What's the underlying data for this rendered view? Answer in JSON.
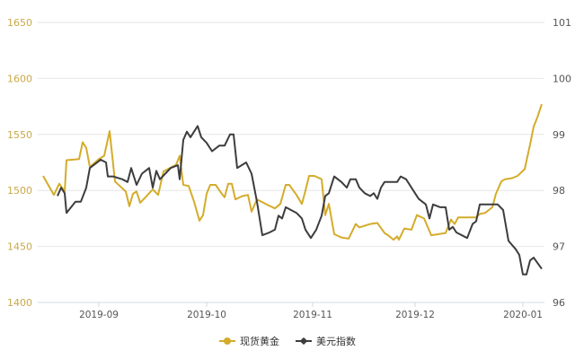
{
  "chart_data": {
    "type": "line",
    "title": "",
    "xlabel": "",
    "ylabel_left": "",
    "ylabel_right": "",
    "x_ticks": [
      "2019-09",
      "2019-10",
      "2019-11",
      "2019-12",
      "2020-01"
    ],
    "y_left_ticks": [
      1650,
      1600,
      1550,
      1500,
      1450,
      1400
    ],
    "y_left_range": [
      1400,
      1650
    ],
    "y_right_ticks": [
      101,
      100,
      99,
      98,
      97,
      96
    ],
    "y_right_range": [
      96,
      101
    ],
    "grid": true,
    "legend_position": "bottom",
    "series": [
      {
        "name": "现货黄金",
        "axis": "left",
        "color": "#d4ac2b",
        "points": [
          [
            48,
            1513
          ],
          [
            60,
            1496
          ],
          [
            66,
            1506
          ],
          [
            72,
            1499
          ],
          [
            74,
            1527
          ],
          [
            88,
            1528
          ],
          [
            92,
            1543
          ],
          [
            96,
            1538
          ],
          [
            100,
            1521
          ],
          [
            110,
            1528
          ],
          [
            116,
            1531
          ],
          [
            122,
            1553
          ],
          [
            128,
            1508
          ],
          [
            136,
            1502
          ],
          [
            140,
            1499
          ],
          [
            144,
            1486
          ],
          [
            148,
            1497
          ],
          [
            152,
            1499
          ],
          [
            156,
            1489
          ],
          [
            162,
            1494
          ],
          [
            170,
            1501
          ],
          [
            176,
            1496
          ],
          [
            182,
            1517
          ],
          [
            196,
            1523
          ],
          [
            200,
            1531
          ],
          [
            204,
            1505
          ],
          [
            210,
            1504
          ],
          [
            216,
            1490
          ],
          [
            222,
            1473
          ],
          [
            226,
            1478
          ],
          [
            230,
            1497
          ],
          [
            234,
            1505
          ],
          [
            240,
            1505
          ],
          [
            246,
            1498
          ],
          [
            250,
            1494
          ],
          [
            254,
            1506
          ],
          [
            258,
            1506
          ],
          [
            262,
            1492
          ],
          [
            270,
            1495
          ],
          [
            276,
            1496
          ],
          [
            280,
            1481
          ],
          [
            286,
            1492
          ],
          [
            298,
            1487
          ],
          [
            306,
            1484
          ],
          [
            312,
            1488
          ],
          [
            318,
            1505
          ],
          [
            322,
            1505
          ],
          [
            330,
            1496
          ],
          [
            336,
            1488
          ],
          [
            340,
            1500
          ],
          [
            344,
            1513
          ],
          [
            350,
            1513
          ],
          [
            358,
            1510
          ],
          [
            362,
            1478
          ],
          [
            366,
            1488
          ],
          [
            372,
            1461
          ],
          [
            380,
            1458
          ],
          [
            388,
            1457
          ],
          [
            396,
            1470
          ],
          [
            400,
            1467
          ],
          [
            412,
            1470
          ],
          [
            420,
            1471
          ],
          [
            428,
            1462
          ],
          [
            432,
            1460
          ],
          [
            438,
            1456
          ],
          [
            442,
            1459
          ],
          [
            444,
            1456
          ],
          [
            450,
            1466
          ],
          [
            458,
            1465
          ],
          [
            464,
            1478
          ],
          [
            472,
            1475
          ],
          [
            480,
            1460
          ],
          [
            488,
            1461
          ],
          [
            496,
            1462
          ],
          [
            502,
            1474
          ],
          [
            506,
            1470
          ],
          [
            510,
            1476
          ],
          [
            520,
            1476
          ],
          [
            530,
            1476
          ],
          [
            534,
            1479
          ],
          [
            540,
            1480
          ],
          [
            548,
            1485
          ],
          [
            552,
            1497
          ],
          [
            558,
            1508
          ],
          [
            562,
            1510
          ],
          [
            570,
            1511
          ],
          [
            576,
            1513
          ],
          [
            584,
            1519
          ],
          [
            590,
            1541
          ],
          [
            594,
            1557
          ],
          [
            598,
            1565
          ],
          [
            603,
            1577
          ]
        ]
      },
      {
        "name": "美元指数",
        "axis": "right",
        "color": "#3d3d3f",
        "points": [
          [
            64,
            97.9
          ],
          [
            68,
            98.05
          ],
          [
            72,
            97.95
          ],
          [
            74,
            97.6
          ],
          [
            84,
            97.8
          ],
          [
            90,
            97.8
          ],
          [
            96,
            98.05
          ],
          [
            100,
            98.4
          ],
          [
            112,
            98.55
          ],
          [
            118,
            98.5
          ],
          [
            120,
            98.25
          ],
          [
            126,
            98.25
          ],
          [
            136,
            98.2
          ],
          [
            142,
            98.15
          ],
          [
            146,
            98.4
          ],
          [
            152,
            98.1
          ],
          [
            158,
            98.3
          ],
          [
            166,
            98.4
          ],
          [
            170,
            98.05
          ],
          [
            174,
            98.35
          ],
          [
            178,
            98.2
          ],
          [
            184,
            98.3
          ],
          [
            190,
            98.4
          ],
          [
            198,
            98.45
          ],
          [
            200,
            98.2
          ],
          [
            204,
            98.9
          ],
          [
            208,
            99.05
          ],
          [
            212,
            98.95
          ],
          [
            220,
            99.15
          ],
          [
            224,
            98.95
          ],
          [
            230,
            98.85
          ],
          [
            236,
            98.7
          ],
          [
            244,
            98.8
          ],
          [
            250,
            98.8
          ],
          [
            256,
            99.0
          ],
          [
            260,
            99.0
          ],
          [
            264,
            98.4
          ],
          [
            274,
            98.5
          ],
          [
            280,
            98.3
          ],
          [
            286,
            97.8
          ],
          [
            292,
            97.2
          ],
          [
            300,
            97.25
          ],
          [
            306,
            97.3
          ],
          [
            310,
            97.55
          ],
          [
            314,
            97.5
          ],
          [
            318,
            97.7
          ],
          [
            330,
            97.6
          ],
          [
            336,
            97.5
          ],
          [
            340,
            97.3
          ],
          [
            346,
            97.15
          ],
          [
            352,
            97.3
          ],
          [
            358,
            97.55
          ],
          [
            362,
            97.9
          ],
          [
            366,
            97.95
          ],
          [
            372,
            98.25
          ],
          [
            380,
            98.15
          ],
          [
            386,
            98.05
          ],
          [
            390,
            98.2
          ],
          [
            396,
            98.2
          ],
          [
            400,
            98.05
          ],
          [
            406,
            97.95
          ],
          [
            412,
            97.9
          ],
          [
            416,
            97.95
          ],
          [
            420,
            97.85
          ],
          [
            424,
            98.05
          ],
          [
            428,
            98.15
          ],
          [
            436,
            98.15
          ],
          [
            442,
            98.15
          ],
          [
            446,
            98.25
          ],
          [
            452,
            98.2
          ],
          [
            458,
            98.05
          ],
          [
            466,
            97.85
          ],
          [
            474,
            97.75
          ],
          [
            478,
            97.5
          ],
          [
            482,
            97.75
          ],
          [
            490,
            97.7
          ],
          [
            496,
            97.7
          ],
          [
            500,
            97.3
          ],
          [
            504,
            97.35
          ],
          [
            508,
            97.25
          ],
          [
            520,
            97.15
          ],
          [
            526,
            97.4
          ],
          [
            530,
            97.45
          ],
          [
            534,
            97.75
          ],
          [
            546,
            97.75
          ],
          [
            554,
            97.75
          ],
          [
            560,
            97.65
          ],
          [
            566,
            97.1
          ],
          [
            574,
            96.95
          ],
          [
            578,
            96.85
          ],
          [
            582,
            96.5
          ],
          [
            586,
            96.5
          ],
          [
            590,
            96.75
          ],
          [
            594,
            96.8
          ],
          [
            603,
            96.6
          ]
        ]
      }
    ]
  },
  "legend": {
    "items": [
      {
        "label": "现货黄金",
        "color": "#d4ac2b"
      },
      {
        "label": "美元指数",
        "color": "#3d3d3f"
      }
    ]
  }
}
